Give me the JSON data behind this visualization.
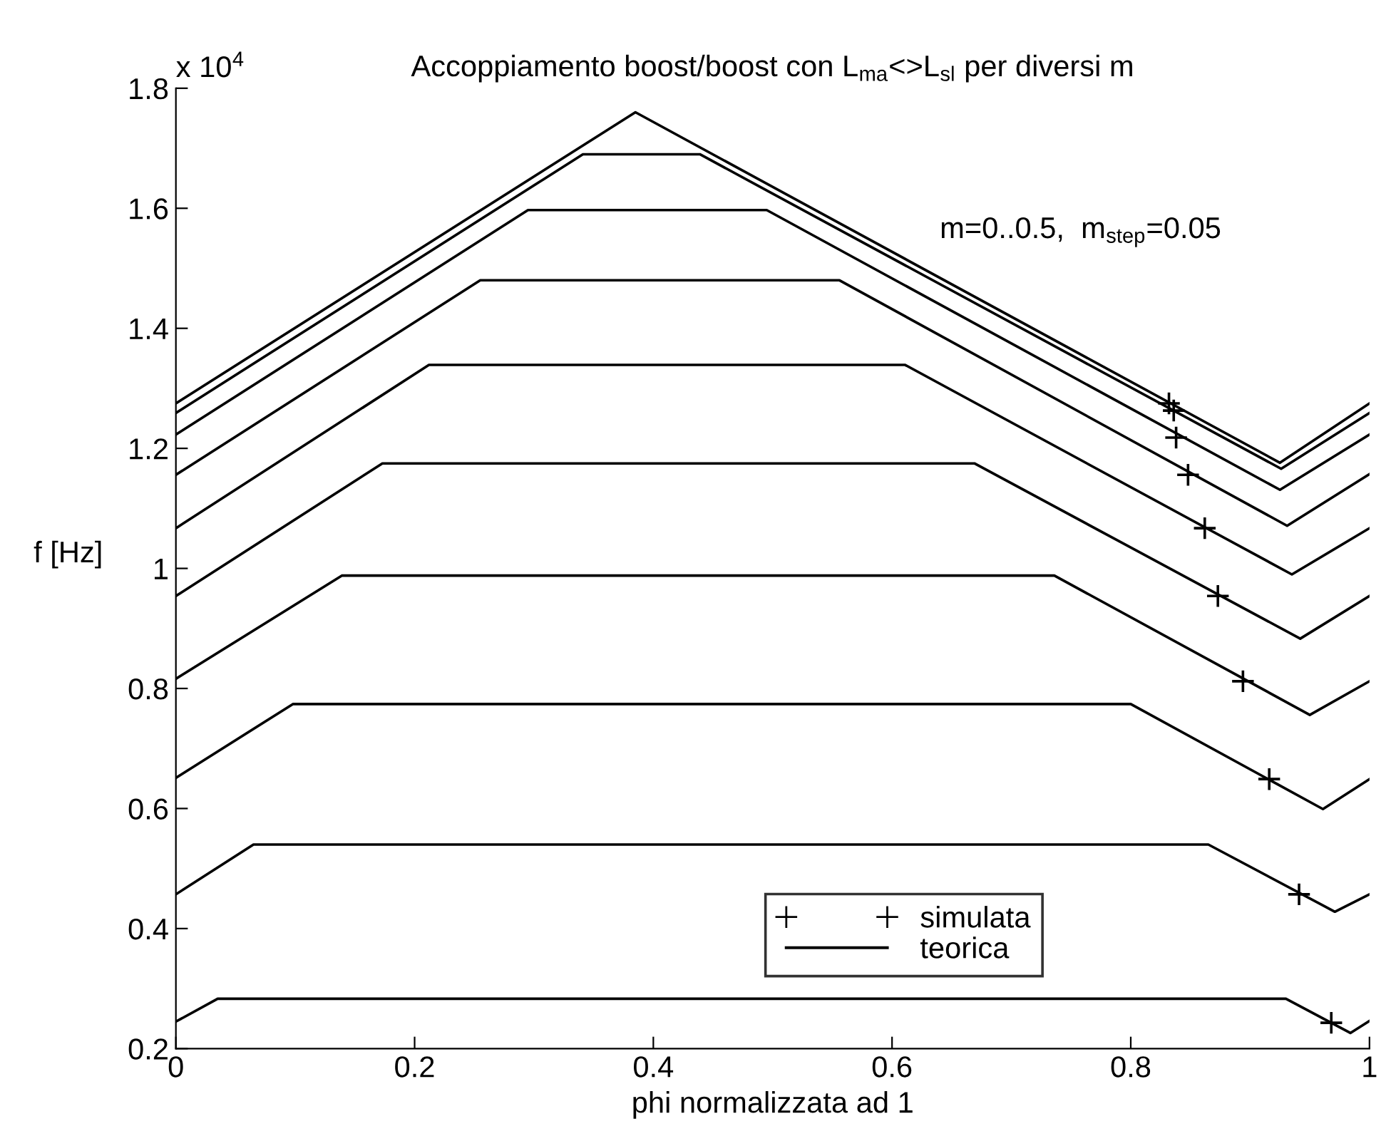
{
  "chart_data": {
    "type": "line",
    "title": "Accoppiamento boost/boost con L$_{ma}$<>L$_{sl}$ per diversi m",
    "xlabel": "phi normalizzata ad 1",
    "ylabel": "f [Hz]",
    "annotations": [
      "x 10$^{4}$",
      "m=0..0.5,  m$_{step}$=0.05"
    ],
    "xlim": [
      0,
      1
    ],
    "ylim": [
      0.2,
      1.8
    ],
    "xticks": [
      0,
      0.2,
      0.4,
      0.6,
      0.8,
      1
    ],
    "yticks": [
      0.2,
      0.4,
      0.6,
      0.8,
      1,
      1.2,
      1.4,
      1.6,
      1.8
    ],
    "grid": false,
    "legend": "bottom",
    "line_style": "solid",
    "series": [
      {
        "name": "simulata",
        "type": "scatter",
        "color": "#000000",
        "marker": "cross",
        "x": [
          0.832,
          0.836,
          0.838,
          0.848,
          0.862,
          0.873,
          0.894,
          0.916,
          0.941,
          0.968
        ],
        "values": [
          1.275,
          1.263,
          1.218,
          1.156,
          1.067,
          0.954,
          0.812,
          0.649,
          0.457,
          0.243
        ]
      },
      {
        "name": "teorica",
        "color": "#000000",
        "marker": "none",
        "x": [
          0,
          0.385,
          0.925,
          1
        ],
        "values": [
          1.275,
          1.76,
          1.176,
          1.275
        ]
      },
      {
        "color": "#000000",
        "marker": "none",
        "x": [
          0,
          0.341,
          0.439,
          0.926,
          1
        ],
        "values": [
          1.259,
          1.69,
          1.69,
          1.166,
          1.259
        ]
      },
      {
        "color": "#000000",
        "marker": "none",
        "x": [
          0,
          0.295,
          0.495,
          0.925,
          1
        ],
        "values": [
          1.223,
          1.597,
          1.597,
          1.131,
          1.223
        ]
      },
      {
        "color": "#000000",
        "marker": "none",
        "x": [
          0,
          0.255,
          0.556,
          0.931,
          1
        ],
        "values": [
          1.156,
          1.48,
          1.48,
          1.071,
          1.157
        ]
      },
      {
        "color": "#000000",
        "marker": "none",
        "x": [
          0,
          0.212,
          0.611,
          0.935,
          1
        ],
        "values": [
          1.067,
          1.339,
          1.339,
          0.99,
          1.067
        ]
      },
      {
        "color": "#000000",
        "marker": "none",
        "x": [
          0,
          0.173,
          0.669,
          0.942,
          1
        ],
        "values": [
          0.954,
          1.175,
          1.175,
          0.883,
          0.954
        ]
      },
      {
        "color": "#000000",
        "marker": "none",
        "x": [
          0,
          0.139,
          0.736,
          0.95,
          1
        ],
        "values": [
          0.816,
          0.988,
          0.988,
          0.756,
          0.812
        ]
      },
      {
        "color": "#000000",
        "marker": "none",
        "x": [
          0,
          0.098,
          0.8,
          0.961,
          1
        ],
        "values": [
          0.651,
          0.774,
          0.774,
          0.599,
          0.649
        ]
      },
      {
        "color": "#000000",
        "marker": "none",
        "x": [
          0,
          0.065,
          0.865,
          0.971,
          1
        ],
        "values": [
          0.457,
          0.54,
          0.54,
          0.428,
          0.457
        ]
      },
      {
        "color": "#000000",
        "marker": "none",
        "x": [
          0,
          0.035,
          0.93,
          0.984,
          1
        ],
        "values": [
          0.245,
          0.283,
          0.283,
          0.226,
          0.246
        ]
      }
    ]
  }
}
